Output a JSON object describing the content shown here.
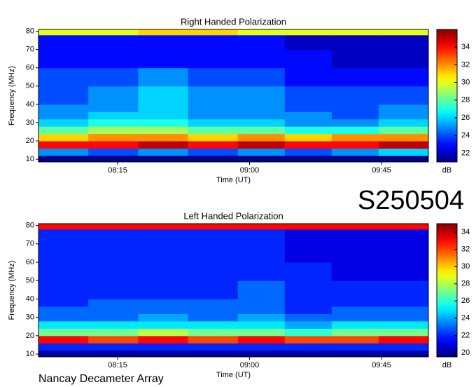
{
  "chart_data": [
    {
      "type": "heatmap",
      "title": "Right Handed Polarization",
      "xlabel": "Time (UT)",
      "ylabel": "Frequency (MHz)",
      "colorbar_label": "dB",
      "colormap": "jet",
      "xbins": [
        468,
        485,
        502,
        519,
        536,
        552,
        568,
        584,
        601
      ],
      "ybins": [
        8.5,
        12,
        16,
        20,
        24,
        28,
        32,
        36,
        40,
        50,
        60,
        70,
        78,
        81
      ],
      "xlim": [
        468,
        601
      ],
      "ylim": [
        8.5,
        81
      ],
      "xticks": [
        {
          "value": 495,
          "label": "08:15"
        },
        {
          "value": 540,
          "label": "09:00"
        },
        {
          "value": 585,
          "label": "09:45"
        }
      ],
      "yticks": [
        10,
        20,
        30,
        40,
        50,
        60,
        70,
        80
      ],
      "clim": [
        21,
        36
      ],
      "cticks": [
        22,
        24,
        26,
        28,
        30,
        32,
        34
      ],
      "values": [
        [
          21,
          21,
          21,
          21,
          21,
          21,
          21,
          21
        ],
        [
          25,
          24,
          25,
          24,
          25,
          24,
          25,
          26
        ],
        [
          34,
          34,
          35,
          34,
          35,
          34,
          34,
          35
        ],
        [
          31,
          32,
          32,
          31,
          32,
          31,
          32,
          32
        ],
        [
          28,
          29,
          29,
          28,
          28,
          27,
          27,
          28
        ],
        [
          26,
          27,
          27,
          26,
          26,
          25,
          25,
          26
        ],
        [
          25,
          26,
          26,
          25,
          25,
          25,
          24,
          25
        ],
        [
          25,
          25,
          26,
          25,
          25,
          24,
          24,
          25
        ],
        [
          24,
          25,
          26,
          25,
          25,
          24,
          24,
          24
        ],
        [
          24,
          24,
          25,
          24,
          24,
          23,
          23,
          23
        ],
        [
          23,
          23,
          23,
          23,
          23,
          23,
          22,
          22
        ],
        [
          23,
          23,
          23,
          23,
          23,
          22,
          22,
          22
        ],
        [
          30,
          30,
          31,
          31,
          30,
          30,
          30,
          30
        ]
      ]
    },
    {
      "type": "heatmap",
      "title": "Left Handed Polarization",
      "xlabel": "Time (UT)",
      "ylabel": "Frequency (MHz)",
      "colorbar_label": "dB",
      "colormap": "jet",
      "xbins": [
        468,
        485,
        502,
        519,
        536,
        552,
        568,
        584,
        601
      ],
      "ybins": [
        8.5,
        12,
        16,
        20,
        24,
        28,
        32,
        36,
        40,
        50,
        60,
        70,
        78,
        81
      ],
      "xlim": [
        468,
        601
      ],
      "ylim": [
        8.5,
        81
      ],
      "xticks": [
        {
          "value": 495,
          "label": "08:15"
        },
        {
          "value": 540,
          "label": "09:00"
        },
        {
          "value": 585,
          "label": "09:45"
        }
      ],
      "yticks": [
        10,
        20,
        30,
        40,
        50,
        60,
        70,
        80
      ],
      "clim": [
        19.5,
        35
      ],
      "cticks": [
        20,
        22,
        24,
        26,
        28,
        30,
        32,
        34
      ],
      "values": [
        [
          20,
          20,
          20,
          20,
          20,
          20,
          20,
          20
        ],
        [
          22,
          22,
          22,
          22,
          22,
          22,
          22,
          22
        ],
        [
          33,
          32,
          33,
          32,
          33,
          32,
          32,
          33
        ],
        [
          27,
          27,
          28,
          27,
          27,
          26,
          27,
          27
        ],
        [
          25,
          25,
          25,
          25,
          25,
          24,
          25,
          25
        ],
        [
          23,
          23,
          24,
          23,
          24,
          23,
          23,
          23
        ],
        [
          23,
          23,
          23,
          23,
          23,
          22,
          23,
          23
        ],
        [
          22,
          23,
          23,
          23,
          23,
          22,
          22,
          22
        ],
        [
          22,
          22,
          22,
          22,
          23,
          22,
          22,
          22
        ],
        [
          22,
          22,
          22,
          22,
          22,
          22,
          21,
          21
        ],
        [
          22,
          22,
          22,
          22,
          22,
          21,
          21,
          21
        ],
        [
          22,
          22,
          22,
          22,
          22,
          21,
          21,
          21
        ],
        [
          33,
          33,
          33,
          33,
          33,
          33,
          33,
          33
        ]
      ]
    }
  ],
  "label": "S250504",
  "footer": "Nancay Decameter Array"
}
